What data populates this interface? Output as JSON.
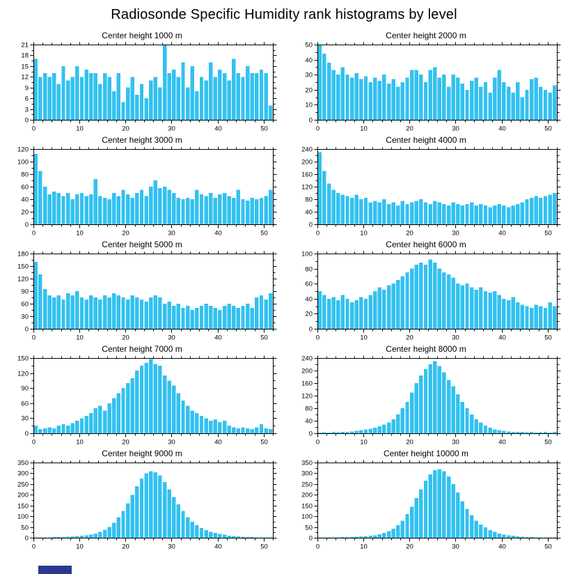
{
  "title": "Radiosonde Specific Humidity rank histograms by level",
  "style": {
    "bar_color": "#33C1F0",
    "axis_color": "#000000",
    "artifact_color": "#2B3990"
  },
  "chart_data": [
    {
      "type": "bar",
      "title": "Center height 1000 m",
      "xlabel": "",
      "ylabel": "",
      "xlim": [
        0,
        52
      ],
      "xstep": 10,
      "xminor": 2,
      "ylim": [
        0,
        21
      ],
      "ystep": 3,
      "values": [
        17,
        12,
        13,
        12,
        13,
        10,
        15,
        11,
        12,
        15,
        12,
        14,
        13,
        13,
        10,
        13,
        12,
        8,
        13,
        5,
        9,
        12,
        7,
        10,
        6,
        11,
        12,
        9,
        21,
        13,
        14,
        12,
        16,
        9,
        15,
        8,
        12,
        11,
        16,
        12,
        14,
        13,
        11,
        17,
        13,
        12,
        15,
        13,
        13,
        14,
        13,
        4
      ]
    },
    {
      "type": "bar",
      "title": "Center height 2000 m",
      "xlabel": "",
      "ylabel": "",
      "xlim": [
        0,
        52
      ],
      "xstep": 10,
      "xminor": 2,
      "ylim": [
        0,
        50
      ],
      "ystep": 10,
      "values": [
        50,
        44,
        38,
        33,
        30,
        35,
        30,
        28,
        31,
        27,
        29,
        25,
        28,
        26,
        30,
        24,
        27,
        22,
        25,
        28,
        33,
        33,
        30,
        25,
        33,
        35,
        28,
        30,
        22,
        30,
        28,
        24,
        20,
        26,
        28,
        22,
        25,
        18,
        28,
        33,
        25,
        22,
        18,
        25,
        15,
        20,
        27,
        28,
        22,
        20,
        18,
        23
      ]
    },
    {
      "type": "bar",
      "title": "Center height 3000 m",
      "xlabel": "",
      "ylabel": "",
      "xlim": [
        0,
        52
      ],
      "xstep": 10,
      "xminor": 2,
      "ylim": [
        0,
        120
      ],
      "ystep": 20,
      "values": [
        112,
        85,
        60,
        48,
        52,
        50,
        45,
        50,
        40,
        48,
        50,
        45,
        48,
        72,
        45,
        42,
        40,
        50,
        45,
        55,
        48,
        42,
        50,
        55,
        45,
        60,
        70,
        58,
        60,
        55,
        50,
        42,
        40,
        42,
        40,
        55,
        48,
        45,
        50,
        42,
        48,
        50,
        45,
        42,
        55,
        40,
        38,
        42,
        40,
        42,
        45,
        55
      ]
    },
    {
      "type": "bar",
      "title": "Center height 4000 m",
      "xlabel": "",
      "ylabel": "",
      "xlim": [
        0,
        52
      ],
      "xstep": 10,
      "xminor": 2,
      "ylim": [
        0,
        240
      ],
      "ystep": 40,
      "values": [
        230,
        170,
        130,
        110,
        100,
        95,
        90,
        85,
        95,
        80,
        85,
        70,
        75,
        70,
        80,
        65,
        70,
        60,
        75,
        65,
        70,
        75,
        80,
        70,
        65,
        75,
        70,
        65,
        60,
        70,
        65,
        60,
        65,
        70,
        60,
        65,
        60,
        55,
        60,
        65,
        60,
        55,
        60,
        65,
        70,
        80,
        85,
        90,
        85,
        90,
        95,
        100
      ]
    },
    {
      "type": "bar",
      "title": "Center height 5000 m",
      "xlabel": "",
      "ylabel": "",
      "xlim": [
        0,
        52
      ],
      "xstep": 10,
      "xminor": 2,
      "ylim": [
        0,
        180
      ],
      "ystep": 30,
      "values": [
        160,
        130,
        95,
        80,
        75,
        80,
        70,
        85,
        80,
        90,
        75,
        70,
        80,
        75,
        70,
        80,
        75,
        85,
        80,
        75,
        70,
        80,
        75,
        70,
        65,
        75,
        80,
        75,
        60,
        65,
        55,
        60,
        50,
        55,
        45,
        50,
        55,
        60,
        55,
        50,
        45,
        55,
        60,
        55,
        50,
        55,
        60,
        50,
        75,
        80,
        70,
        85
      ]
    },
    {
      "type": "bar",
      "title": "Center height 6000 m",
      "xlabel": "",
      "ylabel": "",
      "xlim": [
        0,
        52
      ],
      "xstep": 10,
      "xminor": 2,
      "ylim": [
        0,
        100
      ],
      "ystep": 20,
      "values": [
        50,
        45,
        40,
        42,
        38,
        45,
        40,
        35,
        38,
        42,
        40,
        45,
        50,
        55,
        52,
        58,
        60,
        65,
        70,
        75,
        80,
        85,
        88,
        85,
        92,
        88,
        80,
        75,
        72,
        68,
        60,
        58,
        60,
        55,
        52,
        55,
        50,
        48,
        50,
        45,
        40,
        38,
        42,
        35,
        32,
        30,
        28,
        32,
        30,
        28,
        35,
        30
      ]
    },
    {
      "type": "bar",
      "title": "Center height 7000 m",
      "xlabel": "",
      "ylabel": "",
      "xlim": [
        0,
        52
      ],
      "xstep": 10,
      "xminor": 2,
      "ylim": [
        0,
        150
      ],
      "ystep": 30,
      "values": [
        15,
        8,
        10,
        12,
        10,
        15,
        18,
        15,
        20,
        25,
        30,
        35,
        40,
        50,
        55,
        45,
        60,
        70,
        80,
        90,
        100,
        110,
        125,
        135,
        140,
        148,
        138,
        135,
        115,
        105,
        95,
        80,
        65,
        55,
        45,
        40,
        35,
        30,
        25,
        28,
        22,
        25,
        15,
        12,
        10,
        12,
        10,
        8,
        12,
        18,
        10,
        8
      ]
    },
    {
      "type": "bar",
      "title": "Center height 8000 m",
      "xlabel": "",
      "ylabel": "",
      "xlim": [
        0,
        52
      ],
      "xstep": 10,
      "xminor": 2,
      "ylim": [
        0,
        240
      ],
      "ystep": 40,
      "values": [
        2,
        3,
        2,
        4,
        3,
        5,
        4,
        6,
        8,
        10,
        12,
        15,
        18,
        22,
        28,
        35,
        45,
        60,
        80,
        100,
        130,
        160,
        185,
        205,
        220,
        230,
        215,
        195,
        170,
        150,
        125,
        100,
        80,
        60,
        45,
        35,
        25,
        18,
        12,
        10,
        8,
        6,
        5,
        4,
        5,
        3,
        4,
        2,
        3,
        5,
        2,
        4
      ]
    },
    {
      "type": "bar",
      "title": "Center height 9000 m",
      "xlabel": "",
      "ylabel": "",
      "xlim": [
        0,
        52
      ],
      "xstep": 10,
      "xminor": 2,
      "ylim": [
        0,
        350
      ],
      "ystep": 50,
      "values": [
        1,
        1,
        2,
        2,
        3,
        3,
        4,
        5,
        6,
        8,
        10,
        12,
        15,
        20,
        28,
        38,
        50,
        70,
        95,
        125,
        160,
        200,
        240,
        275,
        300,
        310,
        305,
        290,
        260,
        225,
        190,
        155,
        125,
        95,
        75,
        58,
        45,
        35,
        28,
        22,
        18,
        14,
        10,
        8,
        6,
        5,
        4,
        3,
        2,
        2,
        1,
        1
      ]
    },
    {
      "type": "bar",
      "title": "Center height 10000 m",
      "xlabel": "",
      "ylabel": "",
      "xlim": [
        0,
        52
      ],
      "xstep": 10,
      "xminor": 2,
      "ylim": [
        0,
        350
      ],
      "ystep": 50,
      "values": [
        1,
        1,
        1,
        2,
        2,
        3,
        3,
        4,
        5,
        6,
        8,
        10,
        12,
        16,
        22,
        30,
        42,
        58,
        80,
        110,
        145,
        185,
        225,
        265,
        295,
        315,
        320,
        310,
        285,
        250,
        210,
        170,
        135,
        105,
        80,
        62,
        48,
        36,
        28,
        20,
        15,
        12,
        9,
        7,
        5,
        4,
        3,
        2,
        2,
        1,
        1,
        1
      ]
    }
  ]
}
